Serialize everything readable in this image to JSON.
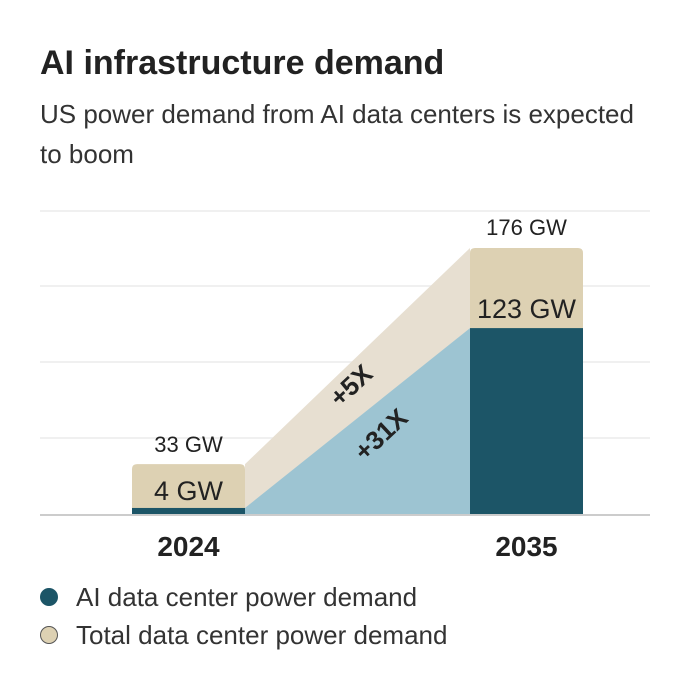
{
  "header": {
    "title": "AI infrastructure demand",
    "subtitle": "US power demand from AI data centers is expected to boom"
  },
  "colors": {
    "ai": "#1c5567",
    "total": "#ddd1b3",
    "ai_growth": "#9dc4d2",
    "total_growth": "#e7dfd1",
    "grid": "#ececec",
    "axis": "#cccccc"
  },
  "legend": [
    {
      "label": "AI data center power demand",
      "color": "#1c5567"
    },
    {
      "label": "Total data center power demand",
      "color": "#ddd1b3"
    }
  ],
  "chart_data": {
    "type": "bar",
    "categories": [
      "2024",
      "2035"
    ],
    "series": [
      {
        "name": "AI data center power demand",
        "values": [
          4,
          123
        ]
      },
      {
        "name": "Total data center power demand",
        "values": [
          33,
          176
        ]
      }
    ],
    "value_labels": {
      "ai": [
        "4 GW",
        "123 GW"
      ],
      "total": [
        "33 GW",
        "176 GW"
      ]
    },
    "annotations": {
      "total_growth": "+5X",
      "ai_growth": "+31X"
    },
    "ylim": [
      0,
      176
    ],
    "grid": true,
    "legend_position": "bottom"
  }
}
